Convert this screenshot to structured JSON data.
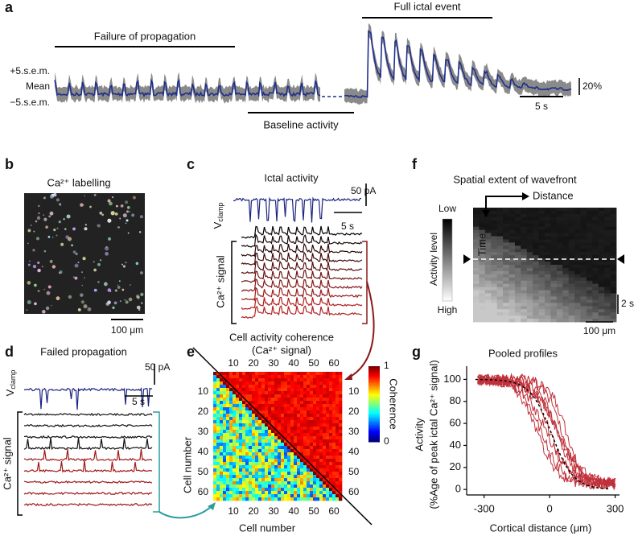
{
  "panels": {
    "a": {
      "letter": "a",
      "failure": "Failure of propagation",
      "full": "Full ictal event",
      "baseline": "Baseline activity",
      "plus": "+5.s.e.m.",
      "mean": "Mean",
      "minus": "−5.s.e.m.",
      "scale_y": "20%",
      "scale_x": "5 s"
    },
    "b": {
      "letter": "b",
      "title": "Ca²⁺ labelling",
      "scale": "100 μm"
    },
    "c": {
      "letter": "c",
      "title": "Ictal activity",
      "scale_y": "50 pA",
      "scale_x": "5 s",
      "v": "V",
      "v_sub": "clamp",
      "signal": "Ca²⁺ signal"
    },
    "d": {
      "letter": "d",
      "title": "Failed propagation",
      "scale_y": "50 pA",
      "scale_x": "5 s",
      "v": "V",
      "v_sub": "clamp",
      "signal": "Ca²⁺ signal"
    },
    "e": {
      "letter": "e",
      "title": "Cell activity coherence",
      "subtitle": "(Ca²⁺ signal)",
      "lim": [
        0,
        64
      ],
      "ticks": [
        10,
        20,
        30,
        40,
        50,
        60
      ],
      "colorbar_label": "Coherence",
      "colorbar_ticks": [
        0,
        1
      ],
      "x_label": "Cell number",
      "y_label": "Cell number"
    },
    "f": {
      "letter": "f",
      "title": "Spatial extent of wavefront",
      "distance": "Distance",
      "time": "Time",
      "low": "Low",
      "high": "High",
      "colorbar_label": "Activity level",
      "scale_y": "2 s",
      "scale_x": "100 μm"
    },
    "g": {
      "letter": "g",
      "title": "Pooled profiles",
      "y_label": "Activity",
      "y_label2": "(%Age of peak ictal Ca²⁺ signal)",
      "x_label": "Cortical distance (μm)",
      "xlim": [
        -380,
        320
      ],
      "ylim": [
        -5,
        112
      ],
      "xticks": [
        -300,
        0,
        300
      ],
      "yticks": [
        0,
        20,
        40,
        60,
        80,
        100
      ]
    }
  }
}
